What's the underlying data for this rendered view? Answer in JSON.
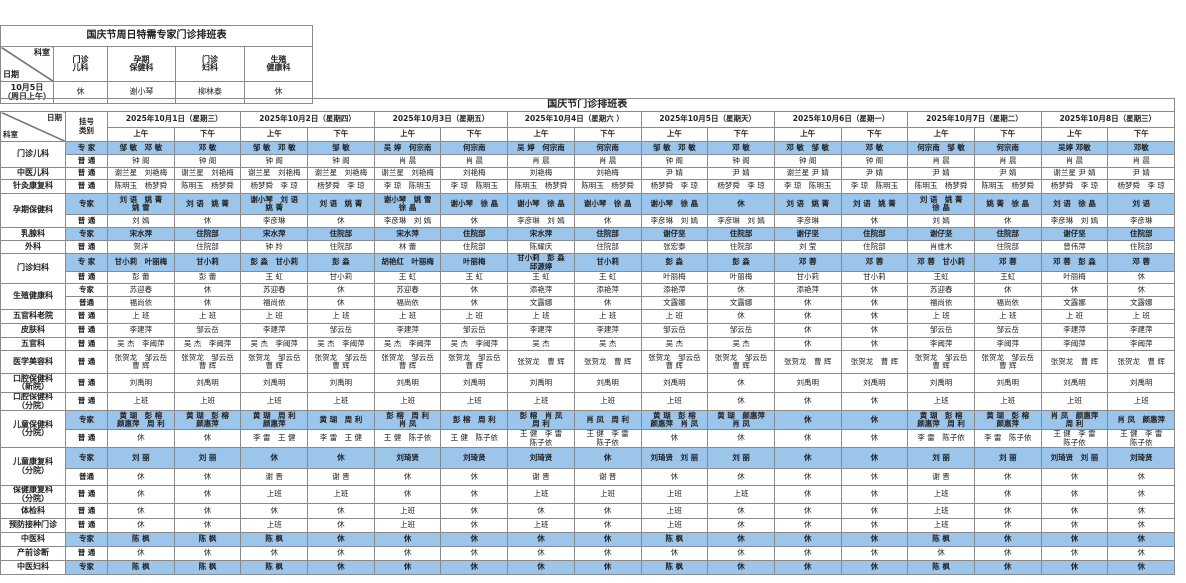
{
  "special_table": {
    "title": "国庆节周日特需专家门诊排班表",
    "corner_top": "科室",
    "corner_bottom": "日期",
    "columns": [
      "门诊\n儿科",
      "孕期\n保健科",
      "门诊\n妇科",
      "生殖\n健康科"
    ],
    "row_label": "10月5日\n（周日上午）",
    "values": [
      "休",
      "谢小琴",
      "柳林泰",
      "休"
    ]
  },
  "main_table": {
    "title": "国庆节门诊排班表",
    "corner_top": "日期",
    "corner_bottom": "科室",
    "type_header": "挂号\n类别",
    "am_label": "上午",
    "pm_label": "下午",
    "dates": [
      "2025年10月1日（星期三）",
      "2025年10月2日（星期四）",
      "2025年10月3日（星期五）",
      "2025年10月4日（星期六 ）",
      "2025年10月5日（星期天）",
      "2025年10月6日（星期一）",
      "2025年10月7日（星期二）",
      "2025年10月8日（星期三）"
    ],
    "expert_color": "#9cc5ec",
    "departments": [
      {
        "name": "门诊儿科",
        "rows": [
          {
            "type": "专 家",
            "expert": true,
            "cells": [
              "邹 敏　邓 敏",
              "邓 敏",
              "邹 敏　邓 敏",
              "邹 敏",
              "吴 婷　何宗南",
              "何宗南",
              "吴 婷　何宗南",
              "何宗南",
              "邹 敏　邓 敏",
              "邓 敏",
              "邓 敏　邹 敏",
              "邓 敏",
              "何宗南　邹 敏",
              "何宗南",
              "吴婷 邓敏",
              "邓敏"
            ]
          },
          {
            "type": "普 通",
            "expert": false,
            "cells": [
              "钟 阁",
              "钟 阁",
              "钟 阁",
              "钟 阁",
              "肖 晨",
              "肖 晨",
              "肖 晨",
              "肖 晨",
              "钟 阁",
              "钟 阁",
              "钟 阁",
              "钟 阁",
              "肖 晨",
              "肖 晨",
              "肖 晨",
              "肖 晨"
            ]
          }
        ]
      },
      {
        "name": "中医儿科",
        "rows": [
          {
            "type": "普 通",
            "expert": false,
            "cells": [
              "谢兰星　刘艳梅",
              "谢兰星　刘艳梅",
              "谢兰星　刘艳梅",
              "谢兰星　刘艳梅",
              "谢兰星　刘艳梅",
              "刘艳梅",
              "刘艳梅",
              "刘艳梅",
              "尹 婧",
              "尹 婧",
              "谢兰星 尹 婧",
              "尹 婧",
              "尹 婧",
              "尹 婧",
              "谢兰星 尹 婧",
              "尹 婧"
            ]
          }
        ]
      },
      {
        "name": "针灸康复科",
        "rows": [
          {
            "type": "普 通",
            "expert": false,
            "cells": [
              "陈明玉　杨梦舜",
              "陈明玉　杨梦舜",
              "杨梦舜　李 琼",
              "杨梦舜　李 琼",
              "李 琼　陈明玉",
              "李 琼　陈明玉",
              "陈明玉　杨梦舜",
              "陈明玉　杨梦舜",
              "杨梦舜　李 琼",
              "杨梦舜　李 琼",
              "李 琼　陈明玉",
              "李 琼　陈明玉",
              "陈明玉　杨梦舜",
              "陈明玉　杨梦舜",
              "杨梦舜　李 琼",
              "杨梦舜　李 琼"
            ]
          }
        ]
      },
      {
        "name": "孕期保健科",
        "rows": [
          {
            "type": "专家",
            "expert": true,
            "cells": [
              "刘 语　姚 菁\n姚 雪",
              "刘 语　姚 菁",
              "谢小琴　刘 语\n姚 菁",
              "刘 语　姚 菁",
              "谢小琴　姚 雪\n徐 晶",
              "谢小琴　徐 晶",
              "谢小琴　徐 晶",
              "谢小琴　徐 晶",
              "谢小琴　徐 晶",
              "休",
              "刘 语　姚 菁",
              "刘 语　姚 菁",
              "刘 语　姚 菁\n徐 晶",
              "姚 菁　徐 晶",
              "刘 语　徐 晶",
              "刘 语"
            ]
          },
          {
            "type": "普 通",
            "expert": false,
            "cells": [
              "刘 嫣",
              "休",
              "李彦琳",
              "休",
              "李彦琳　刘 嫣",
              "休",
              "李彦琳　刘 嫣",
              "休",
              "李彦琳　刘 嫣",
              "李彦琳　刘 嫣",
              "李彦琳",
              "休",
              "刘 嫣",
              "休",
              "李彦琳　刘 嫣",
              "李彦琳"
            ]
          }
        ]
      },
      {
        "name": "乳腺科",
        "rows": [
          {
            "type": "专家",
            "expert": true,
            "cells": [
              "宋水萍",
              "住院部",
              "宋水萍",
              "住院部",
              "宋水萍",
              "住院部",
              "宋水萍",
              "住院部",
              "谢仔坚",
              "住院部",
              "谢仔坚",
              "住院部",
              "谢仔坚",
              "住院部",
              "谢仔坚",
              "住院部"
            ]
          }
        ]
      },
      {
        "name": "外科",
        "rows": [
          {
            "type": "普 通",
            "expert": false,
            "cells": [
              "贺洋",
              "住院部",
              "钟 羚",
              "住院部",
              "林 蕾",
              "住院部",
              "陈耀庆",
              "住院部",
              "张宏泰",
              "住院部",
              "刘 莹",
              "住院部",
              "肖维木",
              "住院部",
              "曾伟萍",
              "住院部"
            ]
          }
        ]
      },
      {
        "name": "门诊妇科",
        "rows": [
          {
            "type": "专 家",
            "expert": true,
            "cells": [
              "甘小莉　叶丽梅",
              "甘小莉",
              "彭 淼　甘小莉",
              "彭 淼",
              "胡艳红　叶丽梅",
              "叶丽梅",
              "甘小莉　彭 淼\n邱源婷",
              "甘小莉",
              "彭 淼",
              "彭 淼",
              "邓 蓉",
              "邓 蓉",
              "邓 蓉　甘小莉",
              "邓 蓉",
              "邓 蓉　彭 淼",
              "邓 蓉"
            ]
          },
          {
            "type": "普 通",
            "expert": false,
            "cells": [
              "彭 蕾",
              "彭 蕾",
              "王 虹",
              "甘小莉",
              "王 虹",
              "王 虹",
              "王 虹",
              "王 虹",
              "叶丽梅",
              "叶丽梅",
              "甘小莉",
              "甘小莉",
              "王虹",
              "王虹",
              "叶丽梅",
              "休"
            ]
          }
        ]
      },
      {
        "name": "生殖健康科",
        "rows": [
          {
            "type": "专家",
            "expert": false,
            "cells": [
              "苏迎春",
              "休",
              "苏迎春",
              "休",
              "苏迎春",
              "休",
              "添艳萍",
              "添艳萍",
              "添艳萍",
              "休",
              "添艳萍",
              "休",
              "苏迎春",
              "休",
              "休",
              "休"
            ]
          },
          {
            "type": "普通",
            "expert": false,
            "cells": [
              "福尚依",
              "休",
              "福尚依",
              "休",
              "福尚依",
              "休",
              "文露娜",
              "休",
              "文露娜",
              "文露娜",
              "休",
              "休",
              "福尚依",
              "福尚依",
              "文露娜",
              "文露娜"
            ]
          }
        ]
      },
      {
        "name": "五官科老院",
        "rows": [
          {
            "type": "普 通",
            "expert": false,
            "cells": [
              "上 班",
              "上 班",
              "上 班",
              "上 班",
              "上 班",
              "上 班",
              "上 班",
              "上 班",
              "上 班",
              "休",
              "休",
              "休",
              "上 班",
              "上 班",
              "上 班",
              "上 班"
            ]
          }
        ]
      },
      {
        "name": "皮肤科",
        "rows": [
          {
            "type": "普 通",
            "expert": false,
            "cells": [
              "李建萍",
              "邹云岳",
              "李建萍",
              "邹云岳",
              "李建萍",
              "邹云岳",
              "李建萍",
              "李建萍",
              "邹云岳",
              "邹云岳",
              "休",
              "休",
              "邹云岳",
              "邹云岳",
              "李建萍",
              "李建萍"
            ]
          }
        ]
      },
      {
        "name": "五官科",
        "rows": [
          {
            "type": "普 通",
            "expert": false,
            "cells": [
              "吴 杰　李阈萍",
              "吴 杰　李阈萍",
              "吴 杰　李阈萍",
              "吴 杰　李阈萍",
              "吴 杰　李阈萍",
              "吴 杰　李阈萍",
              "吴 杰",
              "吴 杰",
              "吴 杰",
              "吴 杰",
              "休",
              "休",
              "李阈萍",
              "李阈萍",
              "李阈萍",
              "李阈萍"
            ]
          }
        ]
      },
      {
        "name": "医学美容科",
        "rows": [
          {
            "type": "普 通",
            "expert": false,
            "cells": [
              "张贺龙　邹云岳\n曹 辉",
              "张贺龙　邹云岳\n曹 辉",
              "张贺龙　邹云岳\n曹 辉",
              "张贺龙　邹云岳\n曹 辉",
              "张贺龙　邹云岳\n曹 辉",
              "张贺龙　邹云岳\n曹 辉",
              "张贺龙　曹 辉",
              "张贺龙　曹 辉",
              "张贺龙　邹云岳\n曹 辉",
              "张贺龙　邹云岳\n曹 辉",
              "张贺龙　曹 辉",
              "张贺龙　曹 辉",
              "张贺龙　邹云岳\n曹 辉",
              "张贺龙　邹云岳\n曹 辉",
              "张贺龙　曹 辉",
              "张贺龙　曹 辉"
            ]
          }
        ]
      },
      {
        "name": "口腔保健科\n（新院）",
        "rows": [
          {
            "type": "普 通",
            "expert": false,
            "cells": [
              "刘禹明",
              "刘禹明",
              "刘禹明",
              "刘禹明",
              "刘禹明",
              "刘禹明",
              "刘禹明",
              "刘禹明",
              "刘禹明",
              "休",
              "刘禹明",
              "刘禹明",
              "刘禹明",
              "刘禹明",
              "刘禹明",
              "刘禹明"
            ]
          }
        ]
      },
      {
        "name": "口腔保健科\n（分院）",
        "rows": [
          {
            "type": "普 通",
            "expert": false,
            "cells": [
              "上班",
              "上班",
              "上班",
              "上班",
              "上班",
              "上班",
              "上班",
              "上班",
              "上班",
              "休",
              "休",
              "休",
              "上班",
              "上班",
              "上班",
              "上班"
            ]
          }
        ]
      },
      {
        "name": "儿童保健科\n（分院）",
        "rows": [
          {
            "type": "专家",
            "expert": true,
            "cells": [
              "黄 瑚　彭 榕\n颜惠萍　周 利",
              "黄 瑚　彭 榕\n颜惠萍",
              "黄 瑚　周 利\n颜惠萍",
              "黄 瑚　周 利",
              "彭 榕　周 利\n肖 凤",
              "彭 榕　周 利",
              "彭 榕　肖 凤\n周 利",
              "肖 凤　周 利",
              "黄 瑚　彭 榕\n颜惠萍　肖 凤",
              "黄 瑚　颜惠萍\n肖 凤",
              "休",
              "休",
              "黄 瑚　彭 榕\n颜惠萍　周 利",
              "黄 瑚　彭 榕\n颜惠萍",
              "肖 凤　颜惠萍\n周 利",
              "肖 凤　颜惠萍"
            ]
          },
          {
            "type": "普 通",
            "expert": false,
            "cells": [
              "休",
              "休",
              "李 雷　王 健",
              "李 雷　王 健",
              "王 健　陈子依",
              "王 健　陈子依",
              "王 健　李 雷\n陈子依",
              "王 健　李 雷\n陈子依",
              "休",
              "休",
              "休",
              "休",
              "李 雷　陈子依",
              "李 雷　陈子依",
              "王 健　李 雷\n陈子依",
              "王 健　李 雷\n陈子依"
            ]
          }
        ]
      },
      {
        "name": "儿童康复科\n（分院）",
        "rows": [
          {
            "type": "专家",
            "expert": true,
            "cells": [
              "刘 丽",
              "刘 丽",
              "休",
              "休",
              "刘琦贤",
              "刘琦贤",
              "刘琦贤",
              "休",
              "刘琦贤　刘 丽",
              "刘 丽",
              "休",
              "休",
              "刘 丽",
              "刘 丽",
              "刘琦贤　刘 丽",
              "刘琦贤"
            ]
          },
          {
            "type": "普通",
            "expert": false,
            "cells": [
              "休",
              "休",
              "谢 晋",
              "谢 晋",
              "休",
              "休",
              "谢 晋",
              "谢 晋",
              "休",
              "休",
              "休",
              "休",
              "谢 晋",
              "休",
              "休",
              "休"
            ]
          }
        ]
      },
      {
        "name": "保健康复科\n（分院）",
        "rows": [
          {
            "type": "普 通",
            "expert": false,
            "cells": [
              "休",
              "休",
              "上班",
              "上班",
              "休",
              "休",
              "上班",
              "上班",
              "上班",
              "上班",
              "休",
              "休",
              "上班",
              "休",
              "休",
              "休"
            ]
          }
        ]
      },
      {
        "name": "体检科",
        "rows": [
          {
            "type": "普 通",
            "expert": false,
            "cells": [
              "休",
              "休",
              "休",
              "休",
              "上班",
              "休",
              "休",
              "休",
              "上班",
              "休",
              "休",
              "休",
              "上班",
              "休",
              "休",
              "休"
            ]
          }
        ]
      },
      {
        "name": "预防接种门诊",
        "rows": [
          {
            "type": "普 通",
            "expert": false,
            "cells": [
              "休",
              "休",
              "上班",
              "休",
              "上班",
              "休",
              "上班",
              "休",
              "上班",
              "休",
              "休",
              "休",
              "上班",
              "休",
              "休",
              "休"
            ]
          }
        ]
      },
      {
        "name": "中医科",
        "rows": [
          {
            "type": "专家",
            "expert": true,
            "cells": [
              "陈 枫",
              "陈 枫",
              "陈 枫",
              "休",
              "休",
              "休",
              "休",
              "休",
              "陈 枫",
              "休",
              "休",
              "休",
              "陈 枫",
              "休",
              "休",
              "休"
            ]
          }
        ]
      },
      {
        "name": "产前诊断",
        "rows": [
          {
            "type": "普 通",
            "expert": false,
            "cells": [
              "休",
              "休",
              "休",
              "休",
              "休",
              "休",
              "休",
              "休",
              "休",
              "休",
              "休",
              "休",
              "休",
              "休",
              "休",
              "休"
            ]
          }
        ]
      },
      {
        "name": "中医妇科",
        "rows": [
          {
            "type": "专家",
            "expert": true,
            "cells": [
              "陈 枫",
              "陈 枫",
              "陈 枫",
              "休",
              "休",
              "休",
              "休",
              "休",
              "陈 枫",
              "休",
              "休",
              "休",
              "陈 枫",
              "休",
              "休",
              "休"
            ]
          }
        ]
      }
    ]
  }
}
